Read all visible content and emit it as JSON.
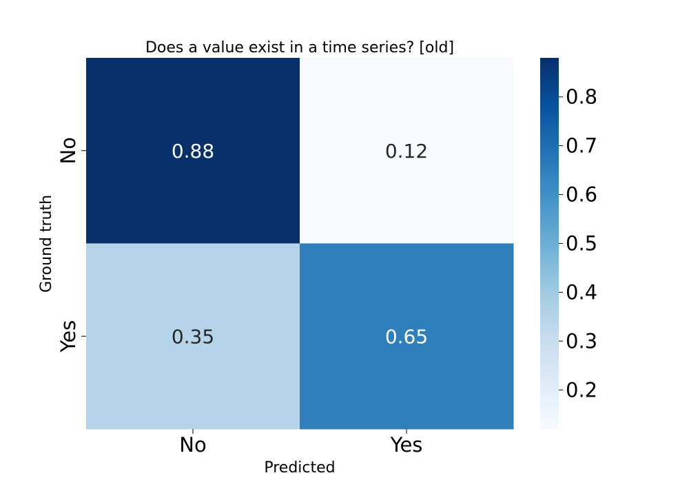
{
  "chart_data": {
    "type": "heatmap",
    "title": "Does a value exist in a time series? [old]",
    "xlabel": "Predicted",
    "ylabel": "Ground truth",
    "x_categories": [
      "No",
      "Yes"
    ],
    "y_categories": [
      "No",
      "Yes"
    ],
    "values": [
      [
        0.88,
        0.12
      ],
      [
        0.35,
        0.65
      ]
    ],
    "value_labels": [
      [
        "0.88",
        "0.12"
      ],
      [
        "0.35",
        "0.65"
      ]
    ],
    "colormap": "Blues",
    "vmin": 0.12,
    "vmax": 0.88,
    "colorbar_ticks": [
      0.2,
      0.3,
      0.4,
      0.5,
      0.6,
      0.7,
      0.8
    ],
    "colorbar_tick_labels": [
      "0.2",
      "0.3",
      "0.4",
      "0.5",
      "0.6",
      "0.7",
      "0.8"
    ]
  }
}
